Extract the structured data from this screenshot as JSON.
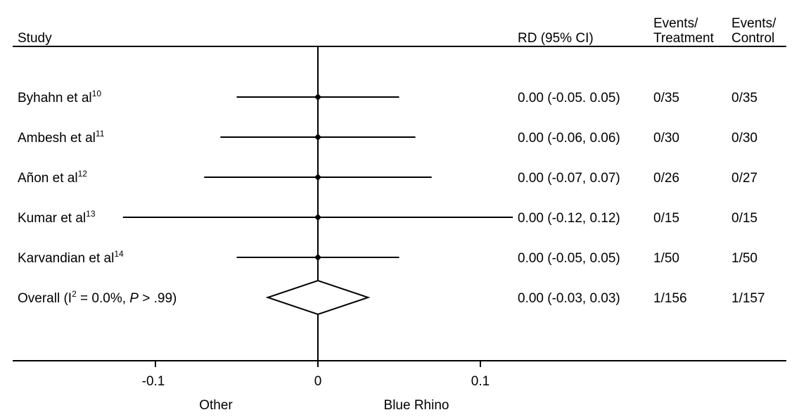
{
  "chart_data": {
    "type": "forest",
    "columns": {
      "study": "Study",
      "rd": "RD (95% CI)",
      "events_treatment": [
        "Events/",
        "Treatment"
      ],
      "events_control": [
        "Events/",
        "Control"
      ]
    },
    "studies": [
      {
        "name": "Byhahn et al",
        "ref": "10",
        "rd": 0.0,
        "lo": -0.05,
        "hi": 0.05,
        "ci_text": "0.00 (-0.05. 0.05)",
        "events_treatment": "0/35",
        "events_control": "0/35"
      },
      {
        "name": "Ambesh et al",
        "ref": "11",
        "rd": 0.0,
        "lo": -0.06,
        "hi": 0.06,
        "ci_text": "0.00 (-0.06, 0.06)",
        "events_treatment": "0/30",
        "events_control": "0/30"
      },
      {
        "name": "Añon et al",
        "ref": "12",
        "rd": 0.0,
        "lo": -0.07,
        "hi": 0.07,
        "ci_text": "0.00 (-0.07, 0.07)",
        "events_treatment": "0/26",
        "events_control": "0/27"
      },
      {
        "name": "Kumar et al",
        "ref": "13",
        "rd": 0.0,
        "lo": -0.12,
        "hi": 0.12,
        "ci_text": "0.00 (-0.12, 0.12)",
        "events_treatment": "0/15",
        "events_control": "0/15"
      },
      {
        "name": "Karvandian et al",
        "ref": "14",
        "rd": 0.0,
        "lo": -0.05,
        "hi": 0.05,
        "ci_text": "0.00 (-0.05, 0.05)",
        "events_treatment": "1/50",
        "events_control": "1/50"
      }
    ],
    "overall": {
      "label_prefix": "Overall (I",
      "label_sup": "2",
      "label_mid": " = 0.0%, ",
      "label_p": "P",
      "label_suffix": " > .99)",
      "rd": 0.0,
      "lo": -0.03,
      "hi": 0.03,
      "ci_text": "0.00 (-0.03, 0.03)",
      "events_treatment": "1/156",
      "events_control": "1/157"
    },
    "x_axis": {
      "ticks": [
        -0.1,
        0,
        0.1
      ],
      "tick_labels": [
        "-0.1",
        "0",
        "0.1"
      ],
      "null_value": 0
    },
    "direction_labels": {
      "left": "Other",
      "right": "Blue Rhino"
    }
  }
}
